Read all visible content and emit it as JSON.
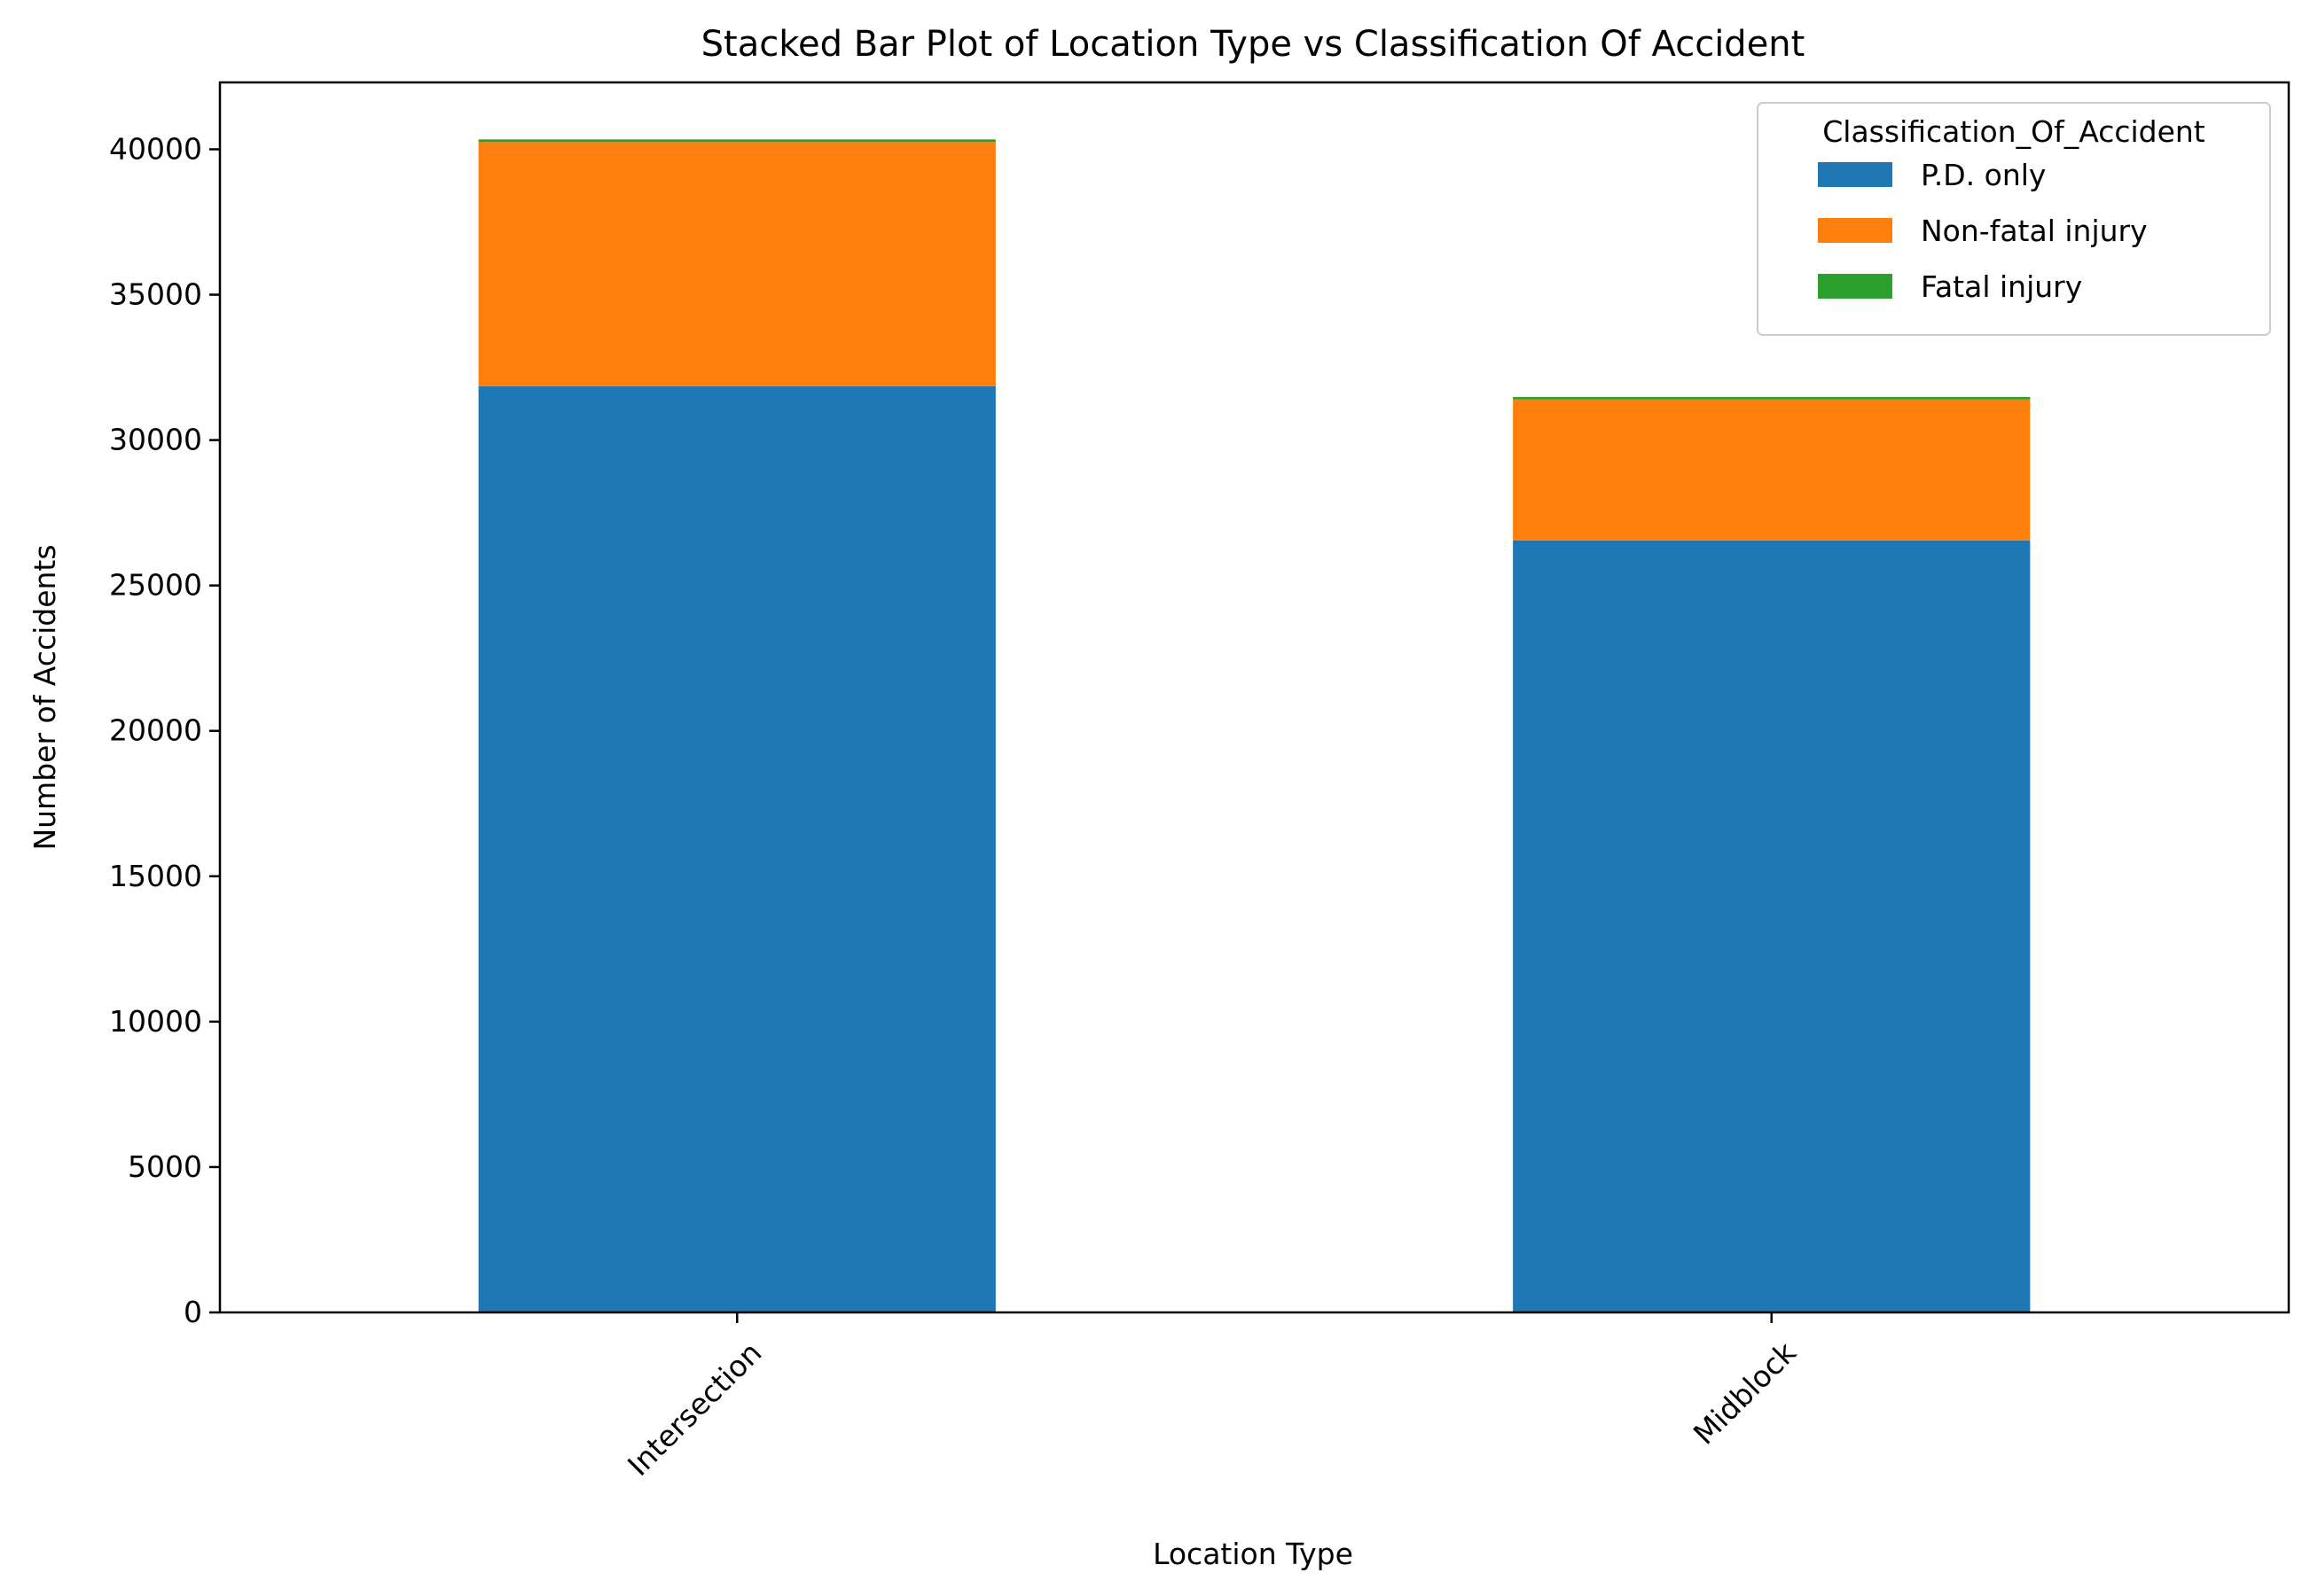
{
  "chart_data": {
    "type": "bar",
    "stacked": true,
    "title": "Stacked Bar Plot of Location Type vs Classification Of Accident",
    "xlabel": "Location Type",
    "ylabel": "Number of Accidents",
    "categories": [
      "Intersection",
      "Midblock"
    ],
    "series": [
      {
        "name": "P.D. only",
        "color": "#1f77b4",
        "values": [
          31850,
          26550
        ]
      },
      {
        "name": "Non-fatal injury",
        "color": "#ff7f0e",
        "values": [
          8400,
          4850
        ]
      },
      {
        "name": "Fatal injury",
        "color": "#2ca02c",
        "values": [
          90,
          80
        ]
      }
    ],
    "ylim": [
      0,
      42300
    ],
    "yticks": [
      0,
      5000,
      10000,
      15000,
      20000,
      25000,
      30000,
      35000,
      40000
    ],
    "ytick_labels": [
      "0",
      "5000",
      "10000",
      "15000",
      "20000",
      "25000",
      "30000",
      "35000",
      "40000"
    ],
    "xtick_rotation": 45,
    "legend": {
      "title": "Classification_Of_Accident",
      "placement": "top-right"
    },
    "grid": false
  }
}
